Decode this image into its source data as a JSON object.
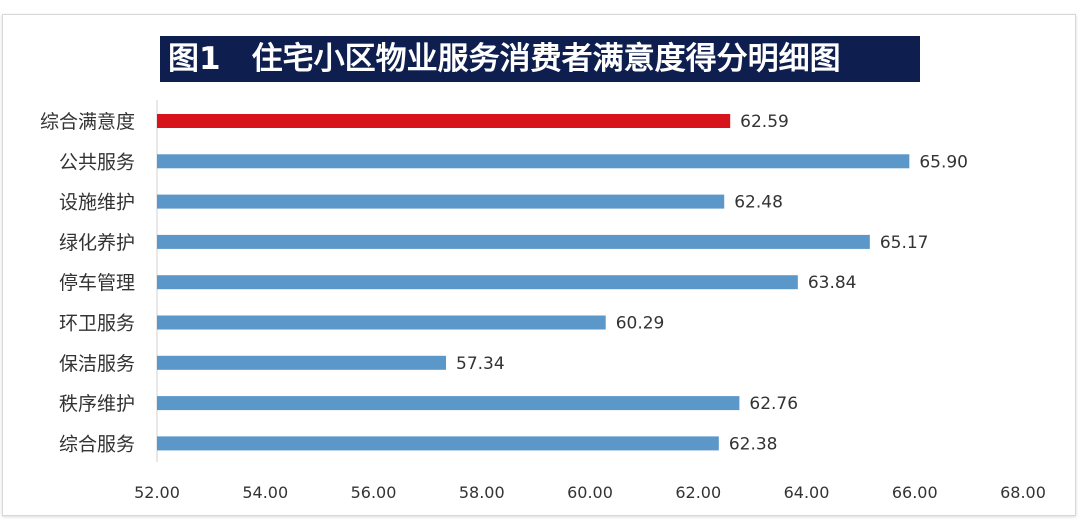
{
  "chart_data": {
    "type": "bar",
    "orientation": "horizontal",
    "title": "图1　住宅小区物业服务消费者满意度得分明细图",
    "categories": [
      "综合满意度",
      "公共服务",
      "设施维护",
      "绿化养护",
      "停车管理",
      "环卫服务",
      "保洁服务",
      "秩序维护",
      "综合服务"
    ],
    "values": [
      62.59,
      65.9,
      62.48,
      65.17,
      63.84,
      60.29,
      57.34,
      62.76,
      62.38
    ],
    "value_labels": [
      "62.59",
      "65.90",
      "62.48",
      "65.17",
      "63.84",
      "60.29",
      "57.34",
      "62.76",
      "62.38"
    ],
    "xlim": [
      52,
      68
    ],
    "xticks": [
      "52.00",
      "54.00",
      "56.00",
      "58.00",
      "60.00",
      "62.00",
      "64.00",
      "66.00",
      "68.00"
    ],
    "xlabel": "",
    "ylabel": "",
    "grid": false,
    "colors": {
      "highlight": "#d7141c",
      "bar": "#5b97c9",
      "title_bg": "#0d1e4f"
    },
    "highlight_index": 0
  }
}
